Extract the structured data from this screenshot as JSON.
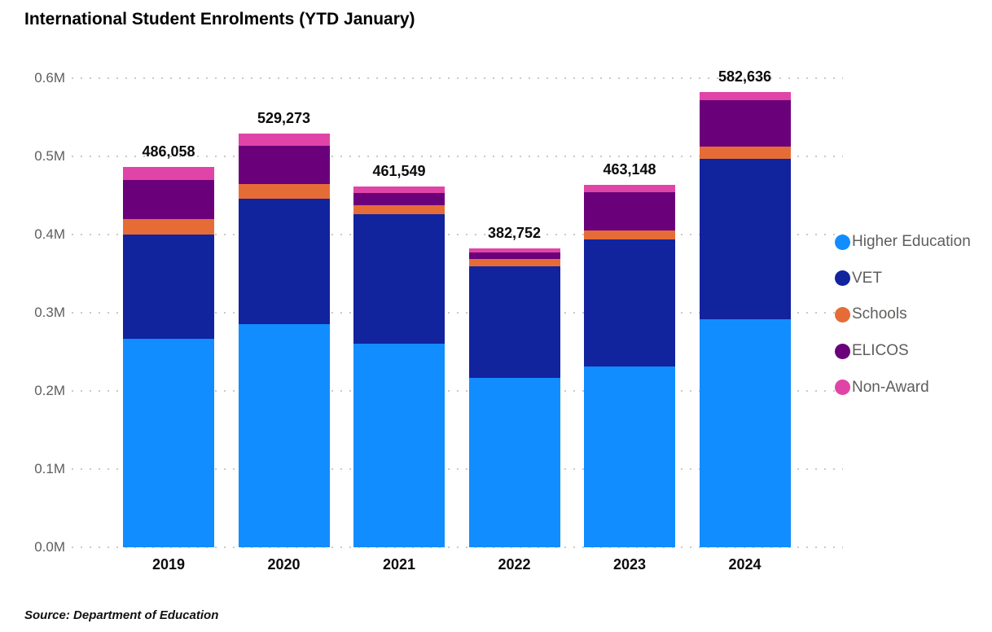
{
  "title": "International Student Enrolments (YTD January)",
  "source_note": "Source: Department of Education",
  "colors": {
    "higher_education": "#118DFF",
    "vet": "#12239E",
    "schools": "#E66C37",
    "elicos": "#6B007B",
    "non_award": "#E044A7",
    "axis_text": "#605E5C",
    "gridline": "#CBC9C7",
    "title_text": "#010101"
  },
  "chart_data": {
    "type": "bar",
    "stacked": true,
    "title": "International Student Enrolments (YTD January)",
    "xlabel": "",
    "ylabel": "",
    "categories": [
      "2019",
      "2020",
      "2021",
      "2022",
      "2023",
      "2024"
    ],
    "series": [
      {
        "name": "Higher Education",
        "color": "#118DFF",
        "values": [
          267000,
          285000,
          260500,
          216600,
          231700,
          291900
        ]
      },
      {
        "name": "VET",
        "color": "#12239E",
        "values": [
          132500,
          161000,
          165100,
          142900,
          161900,
          205200
        ]
      },
      {
        "name": "Schools",
        "color": "#E66C37",
        "values": [
          19800,
          18800,
          11500,
          9000,
          11500,
          15700
        ]
      },
      {
        "name": "ELICOS",
        "color": "#6B007B",
        "values": [
          51000,
          49000,
          15700,
          8400,
          49500,
          59100
        ]
      },
      {
        "name": "Non-Award",
        "color": "#E044A7",
        "values": [
          15758,
          15473,
          8749,
          5852,
          8548,
          10736
        ]
      }
    ],
    "totals": [
      486058,
      529273,
      461549,
      382752,
      463148,
      582636
    ],
    "total_labels": [
      "486,058",
      "529,273",
      "461,549",
      "382,752",
      "463,148",
      "582,636"
    ],
    "y_ticks": [
      "0.0M",
      "0.1M",
      "0.2M",
      "0.3M",
      "0.4M",
      "0.5M",
      "0.6M"
    ],
    "ylim": [
      0,
      600000
    ],
    "grid": "horizontal-dotted",
    "legend_position": "right"
  },
  "legend": {
    "items": [
      {
        "label": "Higher Education",
        "color": "#118DFF"
      },
      {
        "label": "VET",
        "color": "#12239E"
      },
      {
        "label": "Schools",
        "color": "#E66C37"
      },
      {
        "label": "ELICOS",
        "color": "#6B007B"
      },
      {
        "label": "Non-Award",
        "color": "#E044A7"
      }
    ]
  }
}
